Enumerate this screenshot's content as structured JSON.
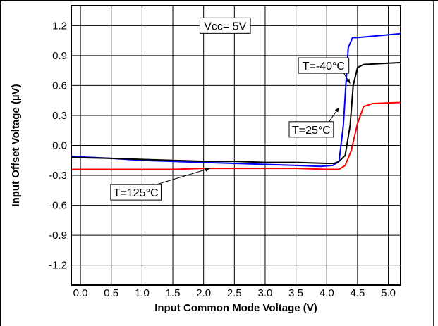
{
  "chart_data": {
    "type": "line",
    "xlabel": "Input Common Mode Voltage (V)",
    "ylabel": "Input Offset Voltage (µV)",
    "xlim": [
      -0.15,
      5.2
    ],
    "ylim": [
      -1.4,
      1.4
    ],
    "x_ticks": [
      0.0,
      0.5,
      1.0,
      1.5,
      2.0,
      2.5,
      3.0,
      3.5,
      4.0,
      4.5,
      5.0
    ],
    "x_tick_labels": [
      "0.0",
      "0.5",
      "1.0",
      "1.5",
      "2.0",
      "2.5",
      "3.0",
      "3.5",
      "4.0",
      "4.5",
      "5.0"
    ],
    "y_ticks": [
      1.2,
      0.9,
      0.6,
      0.3,
      0.0,
      -0.3,
      -0.6,
      -0.9,
      -1.2
    ],
    "y_tick_labels": [
      "1.2",
      "0.9",
      "0.6",
      "0.3",
      "0.0",
      "-0.3",
      "-0.6",
      "-0.9",
      "-1.2"
    ],
    "grid": true,
    "series": [
      {
        "name": "T=-40°C",
        "color": "#0000ff",
        "x": [
          -0.15,
          0.5,
          1.0,
          1.5,
          2.0,
          2.5,
          3.0,
          3.5,
          3.9,
          4.1,
          4.2,
          4.27,
          4.31,
          4.35,
          4.42,
          4.5,
          5.2
        ],
        "y": [
          -0.11,
          -0.13,
          -0.15,
          -0.16,
          -0.17,
          -0.18,
          -0.19,
          -0.2,
          -0.21,
          -0.2,
          -0.16,
          0.2,
          0.6,
          0.98,
          1.08,
          1.08,
          1.12
        ]
      },
      {
        "name": "T=25°C",
        "color": "#000000",
        "x": [
          -0.15,
          0.5,
          1.0,
          1.5,
          2.0,
          2.5,
          3.0,
          3.5,
          4.0,
          4.12,
          4.2,
          4.3,
          4.38,
          4.43,
          4.5,
          4.6,
          5.2
        ],
        "y": [
          -0.12,
          -0.13,
          -0.14,
          -0.15,
          -0.16,
          -0.16,
          -0.17,
          -0.17,
          -0.18,
          -0.18,
          -0.16,
          -0.1,
          0.2,
          0.6,
          0.78,
          0.81,
          0.83
        ]
      },
      {
        "name": "T=125°C",
        "color": "#ff0000",
        "x": [
          -0.15,
          0.5,
          1.0,
          1.5,
          2.0,
          2.5,
          3.0,
          3.5,
          4.0,
          4.2,
          4.3,
          4.4,
          4.5,
          4.6,
          4.75,
          5.2
        ],
        "y": [
          -0.24,
          -0.24,
          -0.24,
          -0.24,
          -0.23,
          -0.23,
          -0.23,
          -0.23,
          -0.24,
          -0.24,
          -0.2,
          -0.05,
          0.22,
          0.39,
          0.42,
          0.43
        ]
      }
    ],
    "annotations": [
      {
        "text": "Vcc= 5V",
        "x": 2.35,
        "y": 1.2
      },
      {
        "text": "T=-40°C",
        "x": 3.95,
        "y": 0.8,
        "arrow_to": [
          4.38,
          0.62
        ]
      },
      {
        "text": "T=25°C",
        "x": 3.75,
        "y": 0.16,
        "arrow_to": [
          4.2,
          0.38
        ]
      },
      {
        "text": "T=125°C",
        "x": 0.9,
        "y": -0.47,
        "arrow_to": [
          2.1,
          -0.23
        ]
      }
    ]
  }
}
